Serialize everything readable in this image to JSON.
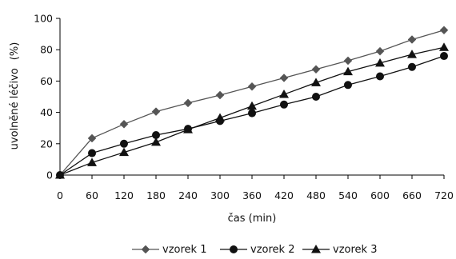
{
  "chart_data": {
    "type": "line",
    "xlabel": "čas (min)",
    "ylabel": "uvolněné léčivo (%)",
    "ylabel_parts": [
      "uvolněné léčivo",
      "(%)"
    ],
    "x": [
      0,
      60,
      120,
      180,
      240,
      300,
      360,
      420,
      480,
      540,
      600,
      660,
      720
    ],
    "x_ticks": [
      "0",
      "60",
      "120",
      "180",
      "240",
      "300",
      "360",
      "420",
      "480",
      "540",
      "600",
      "660",
      "720"
    ],
    "y_ticks": [
      "0",
      "20",
      "40",
      "60",
      "80",
      "100"
    ],
    "xlim": [
      0,
      720
    ],
    "ylim": [
      0,
      100
    ],
    "grid": false,
    "legend_position": "bottom",
    "series": [
      {
        "name": "vzorek 1",
        "marker": "diamond",
        "color": "#555555",
        "values": [
          0,
          23.5,
          32.5,
          40.5,
          46,
          51,
          56.5,
          62,
          67.5,
          73,
          79,
          86.5,
          92.5
        ]
      },
      {
        "name": "vzorek 2",
        "marker": "circle",
        "color": "#111111",
        "values": [
          0,
          14,
          20,
          25.5,
          29.5,
          34.5,
          39.5,
          45,
          50,
          57.5,
          63,
          69,
          76
        ]
      },
      {
        "name": "vzorek 3",
        "marker": "triangle",
        "color": "#111111",
        "values": [
          0,
          8,
          14.5,
          21,
          29,
          36.5,
          44,
          51.5,
          59,
          66,
          71.5,
          77,
          81.5
        ]
      }
    ]
  }
}
